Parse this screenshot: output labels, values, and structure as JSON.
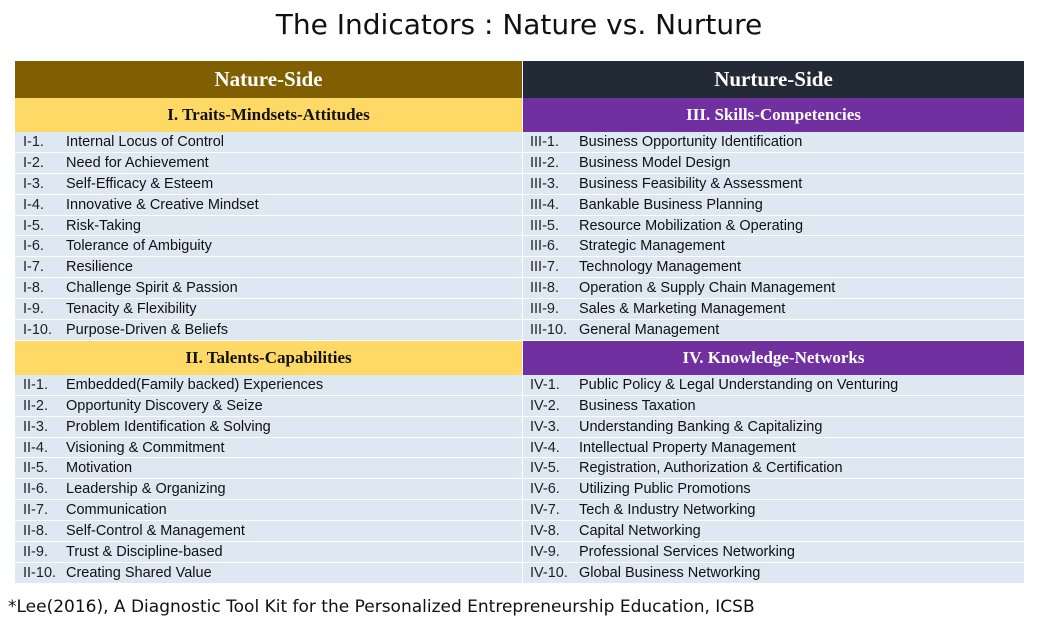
{
  "title": "The Indicators : Nature vs. Nurture",
  "colors": {
    "nature_header": "#7f5f00",
    "nurture_header": "#222a35",
    "nature_section": "#ffd966",
    "nurture_section": "#7030a0",
    "row_bg": "#dde8f2"
  },
  "nature": {
    "header": "Nature-Side",
    "sections": [
      {
        "title": "I. Traits-Mindsets-Attitudes",
        "items": [
          {
            "code": "I-1.",
            "label": "Internal Locus of Control"
          },
          {
            "code": "I-2.",
            "label": "Need for Achievement"
          },
          {
            "code": "I-3.",
            "label": "Self-Efficacy & Esteem"
          },
          {
            "code": "I-4.",
            "label": "Innovative & Creative Mindset"
          },
          {
            "code": "I-5.",
            "label": "Risk-Taking"
          },
          {
            "code": "I-6.",
            "label": "Tolerance of Ambiguity"
          },
          {
            "code": "I-7.",
            "label": "Resilience"
          },
          {
            "code": "I-8.",
            "label": "Challenge Spirit & Passion"
          },
          {
            "code": "I-9.",
            "label": "Tenacity & Flexibility"
          },
          {
            "code": "I-10.",
            "label": "Purpose-Driven & Beliefs"
          }
        ]
      },
      {
        "title": "II. Talents-Capabilities",
        "items": [
          {
            "code": "II-1.",
            "label": "Embedded(Family backed) Experiences"
          },
          {
            "code": "II-2.",
            "label": "Opportunity Discovery & Seize"
          },
          {
            "code": "II-3.",
            "label": "Problem Identification & Solving"
          },
          {
            "code": "II-4.",
            "label": "Visioning & Commitment"
          },
          {
            "code": "II-5.",
            "label": "Motivation"
          },
          {
            "code": "II-6.",
            "label": "Leadership & Organizing"
          },
          {
            "code": "II-7.",
            "label": "Communication"
          },
          {
            "code": "II-8.",
            "label": "Self-Control & Management"
          },
          {
            "code": "II-9.",
            "label": "Trust & Discipline-based"
          },
          {
            "code": "II-10.",
            "label": "Creating Shared Value"
          }
        ]
      }
    ]
  },
  "nurture": {
    "header": "Nurture-Side",
    "sections": [
      {
        "title": "III. Skills-Competencies",
        "items": [
          {
            "code": "III-1.",
            "label": "Business Opportunity Identification"
          },
          {
            "code": "III-2.",
            "label": "Business Model Design"
          },
          {
            "code": "III-3.",
            "label": "Business Feasibility & Assessment"
          },
          {
            "code": "III-4.",
            "label": "Bankable Business Planning"
          },
          {
            "code": "III-5.",
            "label": "Resource Mobilization & Operating"
          },
          {
            "code": "III-6.",
            "label": "Strategic Management"
          },
          {
            "code": "III-7.",
            "label": "Technology Management"
          },
          {
            "code": "III-8.",
            "label": "Operation & Supply Chain Management"
          },
          {
            "code": "III-9.",
            "label": "Sales & Marketing Management"
          },
          {
            "code": "III-10.",
            "label": "General Management"
          }
        ]
      },
      {
        "title": "IV. Knowledge-Networks",
        "items": [
          {
            "code": "IV-1.",
            "label": "Public Policy & Legal Understanding on Venturing"
          },
          {
            "code": "IV-2.",
            "label": "Business Taxation"
          },
          {
            "code": "IV-3.",
            "label": "Understanding Banking & Capitalizing"
          },
          {
            "code": "IV-4.",
            "label": "Intellectual Property Management"
          },
          {
            "code": "IV-5.",
            "label": "Registration, Authorization & Certification"
          },
          {
            "code": "IV-6.",
            "label": "Utilizing Public Promotions"
          },
          {
            "code": "IV-7.",
            "label": "Tech & Industry Networking"
          },
          {
            "code": "IV-8.",
            "label": "Capital Networking"
          },
          {
            "code": "IV-9.",
            "label": "Professional Services Networking"
          },
          {
            "code": "IV-10.",
            "label": "Global Business Networking"
          }
        ]
      }
    ]
  },
  "footnote": "*Lee(2016), A Diagnostic Tool Kit for the Personalized Entrepreneurship Education, ICSB"
}
